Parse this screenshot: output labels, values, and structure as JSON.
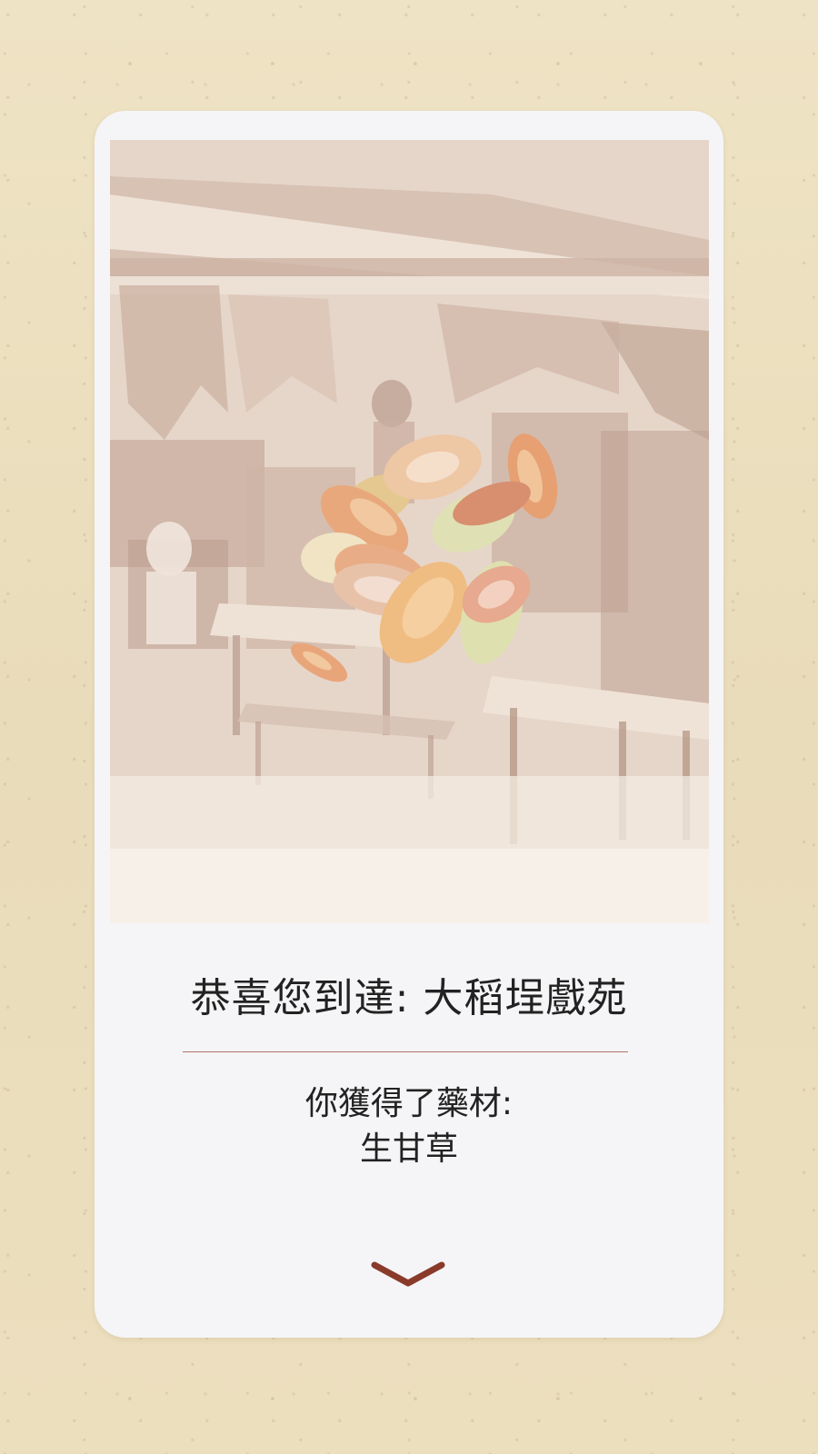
{
  "header": {
    "title": "恭喜您到達: 大稻埕戲苑"
  },
  "reward": {
    "label": "你獲得了藥材:",
    "item": "生甘草"
  },
  "icons": {
    "next": "chevron-down-icon",
    "illustration": "licorice-root-slices-icon"
  },
  "colors": {
    "accent": "#8a3a2a",
    "background": "#ece0bf",
    "card": "#f5f5f7",
    "divider": "#b4726a"
  }
}
